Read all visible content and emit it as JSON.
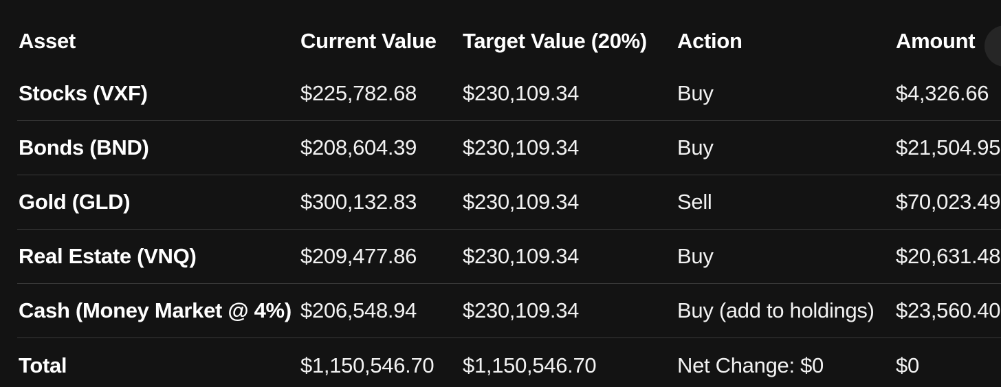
{
  "page": {
    "background_color": "#131313",
    "divider_color": "#3a3a3a",
    "text_color": "#f2f2f2",
    "heading_color": "#ffffff"
  },
  "table": {
    "columns": [
      {
        "id": "asset",
        "label": "Asset"
      },
      {
        "id": "current",
        "label": "Current Value"
      },
      {
        "id": "target",
        "label": "Target Value (20%)"
      },
      {
        "id": "action",
        "label": "Action"
      },
      {
        "id": "amount",
        "label": "Amount"
      }
    ],
    "rows": [
      {
        "asset": "Stocks (VXF)",
        "current": "$225,782.68",
        "target": "$230,109.34",
        "action": "Buy",
        "amount": "$4,326.66"
      },
      {
        "asset": "Bonds (BND)",
        "current": "$208,604.39",
        "target": "$230,109.34",
        "action": "Buy",
        "amount": "$21,504.95"
      },
      {
        "asset": "Gold (GLD)",
        "current": "$300,132.83",
        "target": "$230,109.34",
        "action": "Sell",
        "amount": "$70,023.49"
      },
      {
        "asset": "Real Estate (VNQ)",
        "current": "$209,477.86",
        "target": "$230,109.34",
        "action": "Buy",
        "amount": "$20,631.48"
      },
      {
        "asset": "Cash (Money Market @ 4%)",
        "current": "$206,548.94",
        "target": "$230,109.34",
        "action": "Buy (add to holdings)",
        "amount": "$23,560.40"
      }
    ],
    "total": {
      "asset": "Total",
      "current": "$1,150,546.70",
      "target": "$1,150,546.70",
      "action": "Net Change: $0",
      "amount": "$0"
    }
  }
}
